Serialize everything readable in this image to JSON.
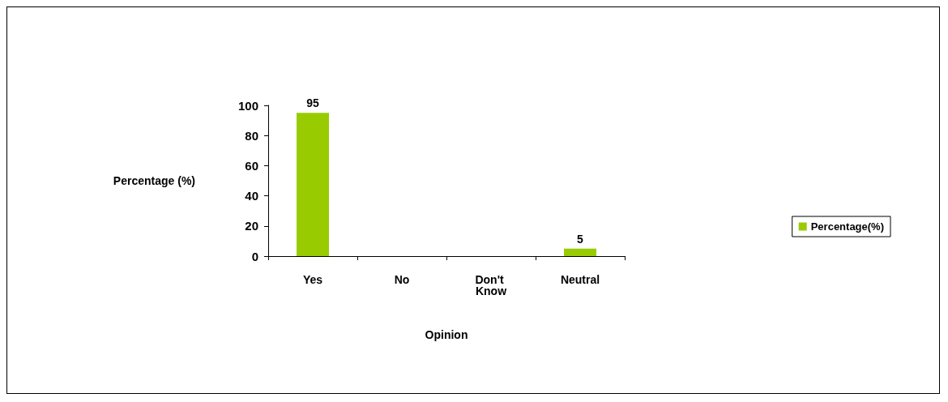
{
  "chart_data": {
    "type": "bar",
    "xlabel": "Opinion",
    "ylabel": "Percentage (%)",
    "categories": [
      "Yes",
      "No",
      "Don't Know",
      "Neutral"
    ],
    "series": [
      {
        "name": "Percentage(%)",
        "color": "#99cc00",
        "values": [
          95,
          0,
          0,
          5
        ],
        "value_labels": [
          "95",
          null,
          null,
          "5"
        ]
      }
    ],
    "ylim": [
      0,
      100
    ],
    "yticks": [
      0,
      20,
      40,
      60,
      80,
      100
    ],
    "grid": false,
    "legend": "right"
  }
}
